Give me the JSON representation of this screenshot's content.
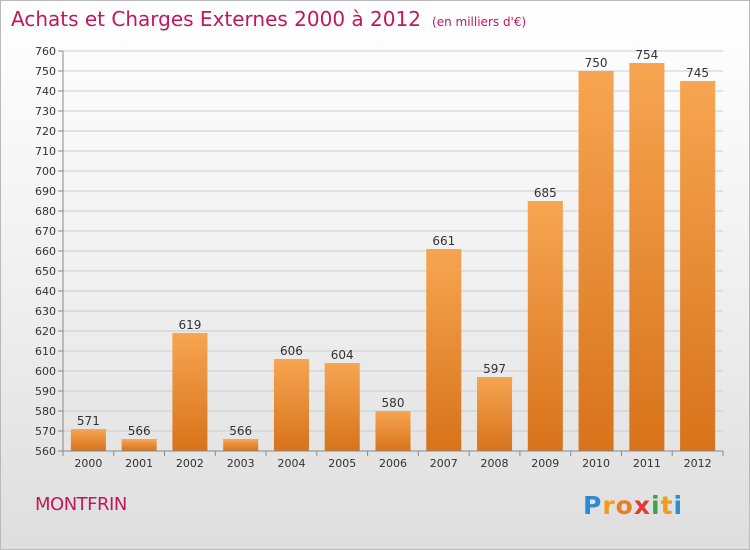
{
  "title": "Achats et Charges Externes 2000 à 2012",
  "unit_note": "(en milliers d'€)",
  "commune": "MONTFRIN",
  "logo": {
    "letters": [
      "P",
      "r",
      "o",
      "x",
      "i",
      "t",
      "i"
    ],
    "colors": [
      "#2e8bd1",
      "#f39c12",
      "#e67e22",
      "#e53935",
      "#43a047",
      "#f39c12",
      "#2e8bd1"
    ]
  },
  "colors": {
    "title": "#c2185b",
    "bar_light": "#f7a552",
    "bar_dark": "#d7731b",
    "grid": "#cccccc"
  },
  "chart_data": {
    "type": "bar",
    "categories": [
      "2000",
      "2001",
      "2002",
      "2003",
      "2004",
      "2005",
      "2006",
      "2007",
      "2008",
      "2009",
      "2010",
      "2011",
      "2012"
    ],
    "values": [
      571,
      566,
      619,
      566,
      606,
      604,
      580,
      661,
      597,
      685,
      750,
      754,
      745
    ],
    "ylim": [
      560,
      760
    ],
    "ytick_step": 10,
    "yticks": [
      "560",
      "570",
      "580",
      "590",
      "600",
      "610",
      "620",
      "630",
      "640",
      "650",
      "660",
      "670",
      "680",
      "690",
      "700",
      "710",
      "720",
      "730",
      "740",
      "750",
      "760"
    ],
    "grid": true,
    "data_labels": true
  }
}
